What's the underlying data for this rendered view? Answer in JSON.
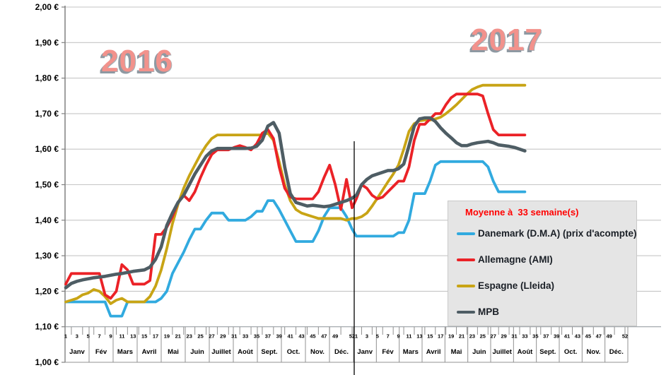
{
  "annotations": {
    "year_left": "2016",
    "year_right": "2017"
  },
  "legend": {
    "title": "Moyenne à  33 semaine(s)",
    "title_color": "#FF0000"
  },
  "chart_data": {
    "type": "line",
    "title": "",
    "ylabel": "",
    "xlabel": "",
    "ylim": [
      1.0,
      2.0
    ],
    "grid": true,
    "legend_position": "right-middle",
    "y_ticks": [
      {
        "label": "2,00 €",
        "value": 2.0
      },
      {
        "label": "1,90 €",
        "value": 1.9
      },
      {
        "label": "1,80 €",
        "value": 1.8
      },
      {
        "label": "1,70 €",
        "value": 1.7
      },
      {
        "label": "1,60 €",
        "value": 1.6
      },
      {
        "label": "1,50 €",
        "value": 1.5
      },
      {
        "label": "1,40 €",
        "value": 1.4
      },
      {
        "label": "1,30 €",
        "value": 1.3
      },
      {
        "label": "1,20 €",
        "value": 1.2
      },
      {
        "label": "1,10 €",
        "value": 1.1
      },
      {
        "label": "1,00 €",
        "value": 1.0
      }
    ],
    "x_axis": {
      "years": [
        {
          "label": "2016",
          "week_ticks": [
            1,
            3,
            5,
            7,
            9,
            11,
            13,
            15,
            17,
            19,
            21,
            23,
            25,
            27,
            29,
            31,
            33,
            35,
            37,
            39,
            41,
            43,
            45,
            47,
            49,
            52
          ],
          "months": [
            "Janv",
            "Fév",
            "Mars",
            "Avril",
            "Mai",
            "Juin",
            "Juillet",
            "Août",
            "Sept.",
            "Oct.",
            "Nov.",
            "Déc."
          ]
        },
        {
          "label": "2017",
          "week_ticks": [
            1,
            3,
            5,
            7,
            9,
            11,
            13,
            15,
            17,
            19,
            21,
            23,
            25,
            27,
            29,
            31,
            33,
            35,
            37,
            39,
            41,
            43,
            45,
            47,
            49,
            52
          ],
          "months": [
            "Janv",
            "Fév",
            "Mars",
            "Avril",
            "Mai",
            "Juin",
            "Juillet",
            "Août",
            "Sept.",
            "Oct.",
            "Nov.",
            "Déc."
          ]
        }
      ]
    },
    "series": [
      {
        "name": "Danemark (D.M.A) (prix d'acompte)",
        "color": "#31AADF",
        "line_width": 3.8,
        "values_2016": [
          1.17,
          1.17,
          1.17,
          1.17,
          1.17,
          1.17,
          1.17,
          1.17,
          1.13,
          1.13,
          1.13,
          1.17,
          1.17,
          1.17,
          1.17,
          1.17,
          1.17,
          1.18,
          1.2,
          1.25,
          1.28,
          1.31,
          1.345,
          1.375,
          1.375,
          1.4,
          1.42,
          1.42,
          1.42,
          1.4,
          1.4,
          1.4,
          1.4,
          1.41,
          1.425,
          1.425,
          1.455,
          1.455,
          1.43,
          1.4,
          1.37,
          1.34,
          1.34,
          1.34,
          1.34,
          1.37,
          1.41,
          1.435,
          1.435,
          1.435,
          1.41,
          1.375
        ],
        "values_2017": [
          1.355,
          1.355,
          1.355,
          1.355,
          1.355,
          1.355,
          1.355,
          1.355,
          1.365,
          1.365,
          1.4,
          1.475,
          1.475,
          1.475,
          1.51,
          1.555,
          1.565,
          1.565,
          1.565,
          1.565,
          1.565,
          1.565,
          1.565,
          1.565,
          1.565,
          1.55,
          1.51,
          1.48,
          1.48,
          1.48,
          1.48,
          1.48,
          1.48
        ]
      },
      {
        "name": "Allemagne (AMI)",
        "color": "#EB2227",
        "line_width": 3.8,
        "values_2016": [
          1.22,
          1.25,
          1.25,
          1.25,
          1.25,
          1.25,
          1.25,
          1.19,
          1.18,
          1.2,
          1.275,
          1.26,
          1.22,
          1.22,
          1.22,
          1.23,
          1.36,
          1.36,
          1.38,
          1.41,
          1.45,
          1.47,
          1.455,
          1.48,
          1.52,
          1.555,
          1.585,
          1.598,
          1.598,
          1.598,
          1.605,
          1.61,
          1.605,
          1.598,
          1.615,
          1.645,
          1.655,
          1.63,
          1.55,
          1.49,
          1.465,
          1.46,
          1.46,
          1.46,
          1.46,
          1.48,
          1.52,
          1.555,
          1.5,
          1.43,
          1.515,
          1.435
        ],
        "values_2017": [
          1.46,
          1.5,
          1.49,
          1.47,
          1.46,
          1.465,
          1.48,
          1.495,
          1.51,
          1.51,
          1.55,
          1.625,
          1.67,
          1.67,
          1.685,
          1.7,
          1.7,
          1.725,
          1.745,
          1.755,
          1.755,
          1.755,
          1.755,
          1.755,
          1.75,
          1.7,
          1.655,
          1.64,
          1.64,
          1.64,
          1.64,
          1.64,
          1.64
        ]
      },
      {
        "name": "Espagne (Lleida)",
        "color": "#C8A415",
        "line_width": 3.8,
        "values_2016": [
          1.17,
          1.175,
          1.18,
          1.19,
          1.195,
          1.205,
          1.2,
          1.185,
          1.165,
          1.175,
          1.18,
          1.17,
          1.17,
          1.17,
          1.17,
          1.185,
          1.215,
          1.26,
          1.32,
          1.39,
          1.445,
          1.49,
          1.525,
          1.555,
          1.585,
          1.61,
          1.63,
          1.64,
          1.64,
          1.64,
          1.64,
          1.64,
          1.64,
          1.64,
          1.64,
          1.64,
          1.645,
          1.625,
          1.565,
          1.5,
          1.455,
          1.43,
          1.42,
          1.415,
          1.41,
          1.405,
          1.405,
          1.405,
          1.405,
          1.405,
          1.4,
          1.405
        ],
        "values_2017": [
          1.405,
          1.41,
          1.42,
          1.44,
          1.462,
          1.485,
          1.508,
          1.53,
          1.555,
          1.6,
          1.65,
          1.672,
          1.68,
          1.682,
          1.682,
          1.685,
          1.69,
          1.7,
          1.712,
          1.725,
          1.74,
          1.755,
          1.768,
          1.775,
          1.78,
          1.78,
          1.78,
          1.78,
          1.78,
          1.78,
          1.78,
          1.78,
          1.78
        ]
      },
      {
        "name": "MPB",
        "color": "#4E5D64",
        "line_width": 4.6,
        "values_2016": [
          1.21,
          1.222,
          1.228,
          1.232,
          1.235,
          1.238,
          1.24,
          1.242,
          1.245,
          1.248,
          1.25,
          1.253,
          1.256,
          1.258,
          1.26,
          1.268,
          1.29,
          1.325,
          1.385,
          1.42,
          1.45,
          1.47,
          1.5,
          1.53,
          1.555,
          1.58,
          1.595,
          1.602,
          1.602,
          1.602,
          1.602,
          1.602,
          1.602,
          1.603,
          1.608,
          1.625,
          1.665,
          1.675,
          1.645,
          1.55,
          1.475,
          1.45,
          1.445,
          1.44,
          1.442,
          1.44,
          1.438,
          1.44,
          1.445,
          1.45,
          1.455,
          1.462
        ],
        "values_2017": [
          1.47,
          1.5,
          1.515,
          1.525,
          1.53,
          1.535,
          1.54,
          1.54,
          1.545,
          1.558,
          1.61,
          1.665,
          1.685,
          1.688,
          1.688,
          1.678,
          1.66,
          1.645,
          1.632,
          1.618,
          1.61,
          1.61,
          1.615,
          1.618,
          1.62,
          1.622,
          1.618,
          1.612,
          1.61,
          1.608,
          1.605,
          1.6,
          1.595
        ]
      }
    ]
  }
}
